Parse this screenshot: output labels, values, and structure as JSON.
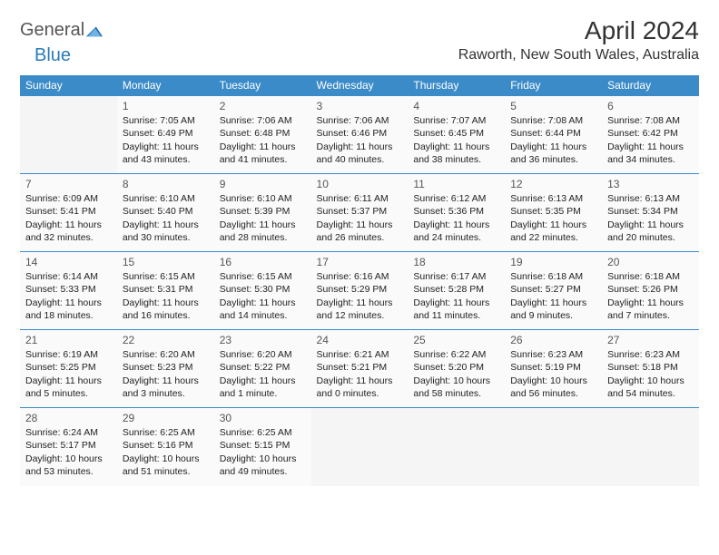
{
  "brand": {
    "text1": "General",
    "text2": "Blue",
    "icon_color": "#1e6bb8"
  },
  "title": "April 2024",
  "location": "Raworth, New South Wales, Australia",
  "colors": {
    "header_bg": "#3b8bc8",
    "header_fg": "#ffffff",
    "cell_border": "#3b8bc8",
    "cell_bg": "#fafafa",
    "logo_gray": "#555555",
    "logo_blue": "#2a7ab8"
  },
  "day_headers": [
    "Sunday",
    "Monday",
    "Tuesday",
    "Wednesday",
    "Thursday",
    "Friday",
    "Saturday"
  ],
  "weeks": [
    [
      null,
      {
        "n": "1",
        "sr": "Sunrise: 7:05 AM",
        "ss": "Sunset: 6:49 PM",
        "dl": "Daylight: 11 hours and 43 minutes."
      },
      {
        "n": "2",
        "sr": "Sunrise: 7:06 AM",
        "ss": "Sunset: 6:48 PM",
        "dl": "Daylight: 11 hours and 41 minutes."
      },
      {
        "n": "3",
        "sr": "Sunrise: 7:06 AM",
        "ss": "Sunset: 6:46 PM",
        "dl": "Daylight: 11 hours and 40 minutes."
      },
      {
        "n": "4",
        "sr": "Sunrise: 7:07 AM",
        "ss": "Sunset: 6:45 PM",
        "dl": "Daylight: 11 hours and 38 minutes."
      },
      {
        "n": "5",
        "sr": "Sunrise: 7:08 AM",
        "ss": "Sunset: 6:44 PM",
        "dl": "Daylight: 11 hours and 36 minutes."
      },
      {
        "n": "6",
        "sr": "Sunrise: 7:08 AM",
        "ss": "Sunset: 6:42 PM",
        "dl": "Daylight: 11 hours and 34 minutes."
      }
    ],
    [
      {
        "n": "7",
        "sr": "Sunrise: 6:09 AM",
        "ss": "Sunset: 5:41 PM",
        "dl": "Daylight: 11 hours and 32 minutes."
      },
      {
        "n": "8",
        "sr": "Sunrise: 6:10 AM",
        "ss": "Sunset: 5:40 PM",
        "dl": "Daylight: 11 hours and 30 minutes."
      },
      {
        "n": "9",
        "sr": "Sunrise: 6:10 AM",
        "ss": "Sunset: 5:39 PM",
        "dl": "Daylight: 11 hours and 28 minutes."
      },
      {
        "n": "10",
        "sr": "Sunrise: 6:11 AM",
        "ss": "Sunset: 5:37 PM",
        "dl": "Daylight: 11 hours and 26 minutes."
      },
      {
        "n": "11",
        "sr": "Sunrise: 6:12 AM",
        "ss": "Sunset: 5:36 PM",
        "dl": "Daylight: 11 hours and 24 minutes."
      },
      {
        "n": "12",
        "sr": "Sunrise: 6:13 AM",
        "ss": "Sunset: 5:35 PM",
        "dl": "Daylight: 11 hours and 22 minutes."
      },
      {
        "n": "13",
        "sr": "Sunrise: 6:13 AM",
        "ss": "Sunset: 5:34 PM",
        "dl": "Daylight: 11 hours and 20 minutes."
      }
    ],
    [
      {
        "n": "14",
        "sr": "Sunrise: 6:14 AM",
        "ss": "Sunset: 5:33 PM",
        "dl": "Daylight: 11 hours and 18 minutes."
      },
      {
        "n": "15",
        "sr": "Sunrise: 6:15 AM",
        "ss": "Sunset: 5:31 PM",
        "dl": "Daylight: 11 hours and 16 minutes."
      },
      {
        "n": "16",
        "sr": "Sunrise: 6:15 AM",
        "ss": "Sunset: 5:30 PM",
        "dl": "Daylight: 11 hours and 14 minutes."
      },
      {
        "n": "17",
        "sr": "Sunrise: 6:16 AM",
        "ss": "Sunset: 5:29 PM",
        "dl": "Daylight: 11 hours and 12 minutes."
      },
      {
        "n": "18",
        "sr": "Sunrise: 6:17 AM",
        "ss": "Sunset: 5:28 PM",
        "dl": "Daylight: 11 hours and 11 minutes."
      },
      {
        "n": "19",
        "sr": "Sunrise: 6:18 AM",
        "ss": "Sunset: 5:27 PM",
        "dl": "Daylight: 11 hours and 9 minutes."
      },
      {
        "n": "20",
        "sr": "Sunrise: 6:18 AM",
        "ss": "Sunset: 5:26 PM",
        "dl": "Daylight: 11 hours and 7 minutes."
      }
    ],
    [
      {
        "n": "21",
        "sr": "Sunrise: 6:19 AM",
        "ss": "Sunset: 5:25 PM",
        "dl": "Daylight: 11 hours and 5 minutes."
      },
      {
        "n": "22",
        "sr": "Sunrise: 6:20 AM",
        "ss": "Sunset: 5:23 PM",
        "dl": "Daylight: 11 hours and 3 minutes."
      },
      {
        "n": "23",
        "sr": "Sunrise: 6:20 AM",
        "ss": "Sunset: 5:22 PM",
        "dl": "Daylight: 11 hours and 1 minute."
      },
      {
        "n": "24",
        "sr": "Sunrise: 6:21 AM",
        "ss": "Sunset: 5:21 PM",
        "dl": "Daylight: 11 hours and 0 minutes."
      },
      {
        "n": "25",
        "sr": "Sunrise: 6:22 AM",
        "ss": "Sunset: 5:20 PM",
        "dl": "Daylight: 10 hours and 58 minutes."
      },
      {
        "n": "26",
        "sr": "Sunrise: 6:23 AM",
        "ss": "Sunset: 5:19 PM",
        "dl": "Daylight: 10 hours and 56 minutes."
      },
      {
        "n": "27",
        "sr": "Sunrise: 6:23 AM",
        "ss": "Sunset: 5:18 PM",
        "dl": "Daylight: 10 hours and 54 minutes."
      }
    ],
    [
      {
        "n": "28",
        "sr": "Sunrise: 6:24 AM",
        "ss": "Sunset: 5:17 PM",
        "dl": "Daylight: 10 hours and 53 minutes."
      },
      {
        "n": "29",
        "sr": "Sunrise: 6:25 AM",
        "ss": "Sunset: 5:16 PM",
        "dl": "Daylight: 10 hours and 51 minutes."
      },
      {
        "n": "30",
        "sr": "Sunrise: 6:25 AM",
        "ss": "Sunset: 5:15 PM",
        "dl": "Daylight: 10 hours and 49 minutes."
      },
      null,
      null,
      null,
      null
    ]
  ]
}
